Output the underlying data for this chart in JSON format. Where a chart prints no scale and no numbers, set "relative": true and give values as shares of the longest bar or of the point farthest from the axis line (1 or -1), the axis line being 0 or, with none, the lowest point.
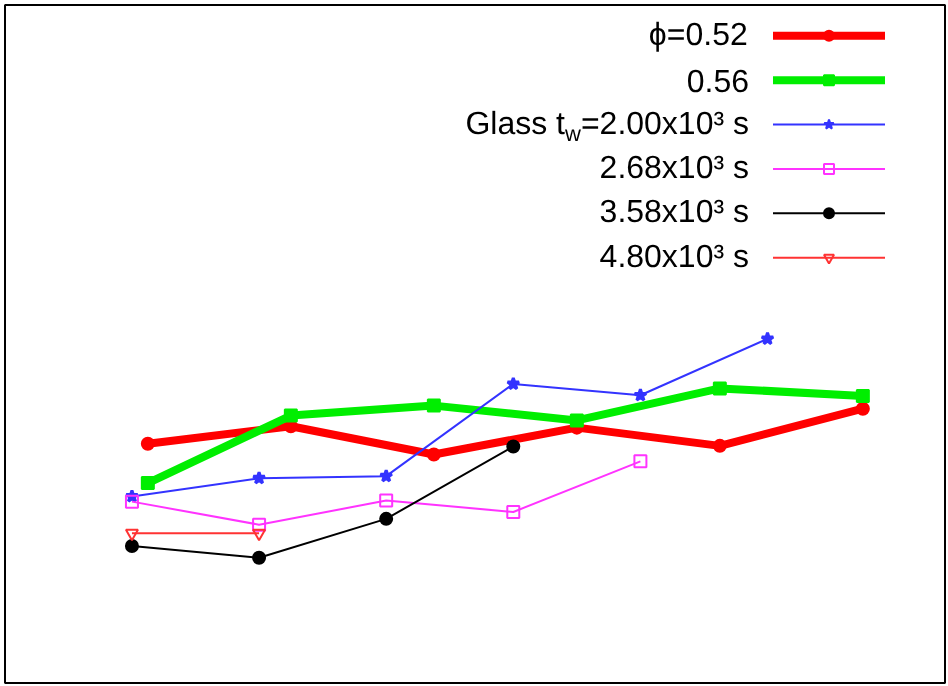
{
  "chart_data": {
    "type": "line",
    "relative": true,
    "legend": "top right",
    "grid": false,
    "line_style": "solid",
    "categories": [
      null,
      null,
      null,
      null,
      null,
      null,
      null,
      null,
      null,
      null,
      null,
      null,
      null,
      null,
      null,
      null,
      null,
      null,
      null,
      null,
      null,
      null,
      null,
      null,
      null,
      null,
      null,
      null,
      null,
      null,
      null,
      null,
      null,
      null,
      null,
      null,
      null,
      null,
      null,
      null,
      null,
      null,
      null,
      null,
      null,
      null,
      null
    ],
    "series": [
      {
        "name": "ϕ=0.52",
        "color": "#ff0000",
        "marker": "circle",
        "values": [
          null,
          0.695,
          null,
          null,
          null,
          null,
          null,
          null,
          null,
          null,
          0.746,
          null,
          null,
          null,
          null,
          null,
          null,
          null,
          null,
          0.664,
          null,
          null,
          null,
          null,
          null,
          null,
          null,
          null,
          0.742,
          null,
          null,
          null,
          null,
          null,
          null,
          null,
          null,
          0.689,
          null,
          null,
          null,
          null,
          null,
          null,
          null,
          null,
          0.797
        ]
      },
      {
        "name": "0.56",
        "color": "#00ee00",
        "marker": "square",
        "values": [
          null,
          0.581,
          null,
          null,
          null,
          null,
          null,
          null,
          null,
          null,
          0.777,
          null,
          null,
          null,
          null,
          null,
          null,
          null,
          null,
          0.806,
          null,
          null,
          null,
          null,
          null,
          null,
          null,
          null,
          0.763,
          null,
          null,
          null,
          null,
          null,
          null,
          null,
          null,
          0.856,
          null,
          null,
          null,
          null,
          null,
          null,
          null,
          null,
          0.834
        ]
      },
      {
        "name": "Glass t$_{w}$=2.00x10³ s",
        "color": "#3333ff",
        "marker": "star",
        "values": [
          0.542,
          null,
          null,
          null,
          null,
          null,
          null,
          null,
          0.595,
          null,
          null,
          null,
          null,
          null,
          null,
          null,
          0.601,
          null,
          null,
          null,
          null,
          null,
          null,
          null,
          0.869,
          null,
          null,
          null,
          null,
          null,
          null,
          null,
          0.836,
          null,
          null,
          null,
          null,
          null,
          null,
          null,
          1,
          null,
          null,
          null,
          null,
          null,
          null
        ]
      },
      {
        "name": "2.68x10³ s",
        "color": "#ff33ff",
        "marker": "square",
        "values": [
          0.527,
          null,
          null,
          null,
          null,
          null,
          null,
          null,
          0.46,
          null,
          null,
          null,
          null,
          null,
          null,
          null,
          0.53,
          null,
          null,
          null,
          null,
          null,
          null,
          null,
          0.497,
          null,
          null,
          null,
          null,
          null,
          null,
          null,
          0.644,
          null,
          null,
          null,
          null,
          null,
          null,
          null,
          null,
          null,
          null,
          null,
          null,
          null,
          null
        ]
      },
      {
        "name": "3.58x10³ s",
        "color": "#000000",
        "marker": "circle",
        "values": [
          0.398,
          null,
          null,
          null,
          null,
          null,
          null,
          null,
          0.364,
          null,
          null,
          null,
          null,
          null,
          null,
          null,
          0.477,
          null,
          null,
          null,
          null,
          null,
          null,
          null,
          0.687,
          null,
          null,
          null,
          null,
          null,
          null,
          null,
          null,
          null,
          null,
          null,
          null,
          null,
          null,
          null,
          null,
          null,
          null,
          null,
          null,
          null,
          null
        ]
      },
      {
        "name": "4.80x10³ s",
        "color": "#ff3333",
        "marker": "triangle",
        "values": [
          0.435,
          null,
          null,
          null,
          null,
          null,
          null,
          null,
          0.435,
          null,
          null,
          null,
          null,
          null,
          null,
          null,
          null,
          null,
          null,
          null,
          null,
          null,
          null,
          null,
          null,
          null,
          null,
          null,
          null,
          null,
          null,
          null,
          null,
          null,
          null,
          null,
          null,
          null,
          null,
          null,
          null,
          null,
          null,
          null,
          null,
          null,
          null
        ]
      }
    ]
  }
}
